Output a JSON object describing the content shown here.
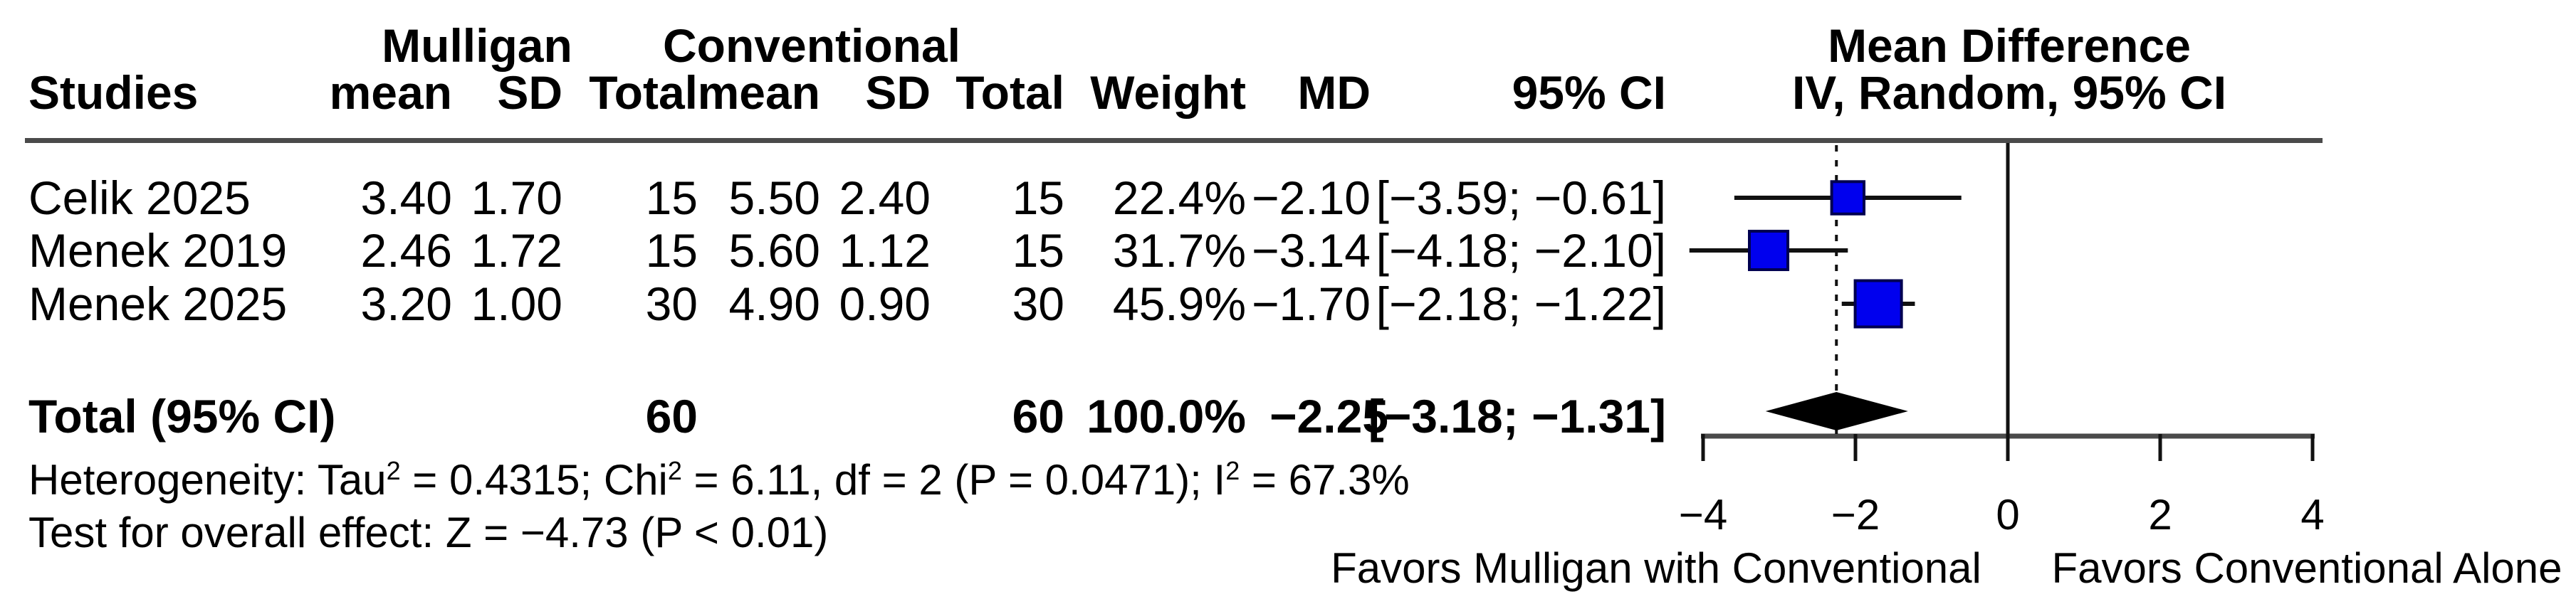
{
  "table": {
    "group_headers": {
      "group1": "Mulligan",
      "group2": "Conventional"
    },
    "effect_header": {
      "line1": "Mean Difference",
      "line2": "IV, Random, 95% CI"
    },
    "columns": {
      "studies": "Studies",
      "mean1": "mean",
      "sd1": "SD",
      "total1": "Total",
      "mean2": "mean",
      "sd2": "SD",
      "total2": "Total",
      "weight": "Weight",
      "md": "MD",
      "ci": "95% CI"
    },
    "rows": [
      {
        "study": "Celik 2025",
        "mul_mean": "3.40",
        "mul_sd": "1.70",
        "mul_total": "15",
        "con_mean": "5.50",
        "con_sd": "2.40",
        "con_total": "15",
        "weight": "22.4%",
        "md": "−2.10",
        "ci": "[−3.59; −0.61]"
      },
      {
        "study": "Menek 2019",
        "mul_mean": "2.46",
        "mul_sd": "1.72",
        "mul_total": "15",
        "con_mean": "5.60",
        "con_sd": "1.12",
        "con_total": "15",
        "weight": "31.7%",
        "md": "−3.14",
        "ci": "[−4.18; −2.10]"
      },
      {
        "study": "Menek 2025",
        "mul_mean": "3.20",
        "mul_sd": "1.00",
        "mul_total": "30",
        "con_mean": "4.90",
        "con_sd": "0.90",
        "con_total": "30",
        "weight": "45.9%",
        "md": "−1.70",
        "ci": "[−2.18; −1.22]"
      }
    ],
    "total_row": {
      "label": "Total (95% CI)",
      "mul_total": "60",
      "con_total": "60",
      "weight": "100.0%",
      "md": "−2.25",
      "ci": "[−3.18; −1.31]"
    },
    "heterogeneity": "Heterogeneity: Tau² = 0.4315; Chi² = 6.11, df = 2 (P = 0.0471); I² = 67.3%",
    "overall_effect": "Test for overall effect: Z = −4.73 (P < 0.01)"
  },
  "chart_data": {
    "type": "forest",
    "title": "Mean Difference, IV, Random, 95% CI",
    "x_axis": {
      "ticks": [
        -4,
        -2,
        0,
        2,
        4
      ],
      "tick_labels": [
        "−4",
        "−2",
        "0",
        "2",
        "4"
      ],
      "range": [
        -4,
        4
      ],
      "zero_line": 0,
      "pooled_line": -2.25,
      "grid": false
    },
    "studies": [
      {
        "name": "Celik 2025",
        "md": -2.1,
        "ci_low": -3.59,
        "ci_high": -0.61,
        "weight_pct": 22.4
      },
      {
        "name": "Menek 2019",
        "md": -3.14,
        "ci_low": -4.18,
        "ci_high": -2.1,
        "weight_pct": 31.7
      },
      {
        "name": "Menek 2025",
        "md": -1.7,
        "ci_low": -2.18,
        "ci_high": -1.22,
        "weight_pct": 45.9
      }
    ],
    "pooled": {
      "md": -2.25,
      "ci_low": -3.18,
      "ci_high": -1.31
    },
    "favors_left": "Favors Mulligan with Conventional",
    "favors_right": "Favors Conventional Alone",
    "marker_color": "#0000EE",
    "marker_border": "#000050",
    "diamond_color": "#000000",
    "rule_color": "#4a4a4a"
  }
}
